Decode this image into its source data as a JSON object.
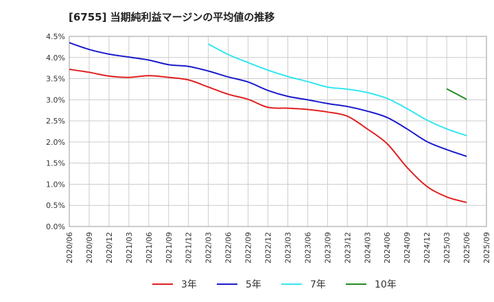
{
  "chart_data": {
    "type": "line",
    "title": "[6755]  当期純利益マージンの平均値の推移",
    "xlabel": "",
    "ylabel": "",
    "ylim": [
      0,
      4.5
    ],
    "yticks": [
      "0.0%",
      "0.5%",
      "1.0%",
      "1.5%",
      "2.0%",
      "2.5%",
      "3.0%",
      "3.5%",
      "4.0%",
      "4.5%"
    ],
    "ytick_values": [
      0,
      0.5,
      1.0,
      1.5,
      2.0,
      2.5,
      3.0,
      3.5,
      4.0,
      4.5
    ],
    "categories": [
      "2020/06",
      "2020/09",
      "2020/12",
      "2021/03",
      "2021/06",
      "2021/09",
      "2021/12",
      "2022/03",
      "2022/06",
      "2022/09",
      "2022/12",
      "2023/03",
      "2023/06",
      "2023/09",
      "2023/12",
      "2024/03",
      "2024/06",
      "2024/09",
      "2024/12",
      "2025/03",
      "2025/06",
      "2025/09"
    ],
    "grid": true,
    "legend_position": "bottom",
    "series": [
      {
        "name": "3年",
        "color": "#e02020",
        "values": [
          3.72,
          3.65,
          3.56,
          3.53,
          3.57,
          3.53,
          3.47,
          3.3,
          3.13,
          3.01,
          2.82,
          2.8,
          2.77,
          2.71,
          2.61,
          2.31,
          1.96,
          1.4,
          0.95,
          0.7,
          0.57,
          null
        ]
      },
      {
        "name": "5年",
        "color": "#1a1acc",
        "values": [
          4.35,
          4.19,
          4.08,
          4.01,
          3.94,
          3.83,
          3.79,
          3.68,
          3.54,
          3.42,
          3.22,
          3.08,
          3.0,
          2.91,
          2.84,
          2.73,
          2.58,
          2.31,
          2.01,
          1.82,
          1.66,
          null
        ]
      },
      {
        "name": "7年",
        "color": "#33e6f0",
        "values": [
          null,
          null,
          null,
          null,
          null,
          null,
          null,
          4.32,
          4.07,
          3.88,
          3.7,
          3.55,
          3.43,
          3.3,
          3.25,
          3.17,
          3.03,
          2.79,
          2.52,
          2.31,
          2.15,
          null
        ]
      },
      {
        "name": "10年",
        "color": "#228b22",
        "values": [
          null,
          null,
          null,
          null,
          null,
          null,
          null,
          null,
          null,
          null,
          null,
          null,
          null,
          null,
          null,
          null,
          null,
          null,
          null,
          3.26,
          3.01,
          null
        ]
      }
    ]
  }
}
